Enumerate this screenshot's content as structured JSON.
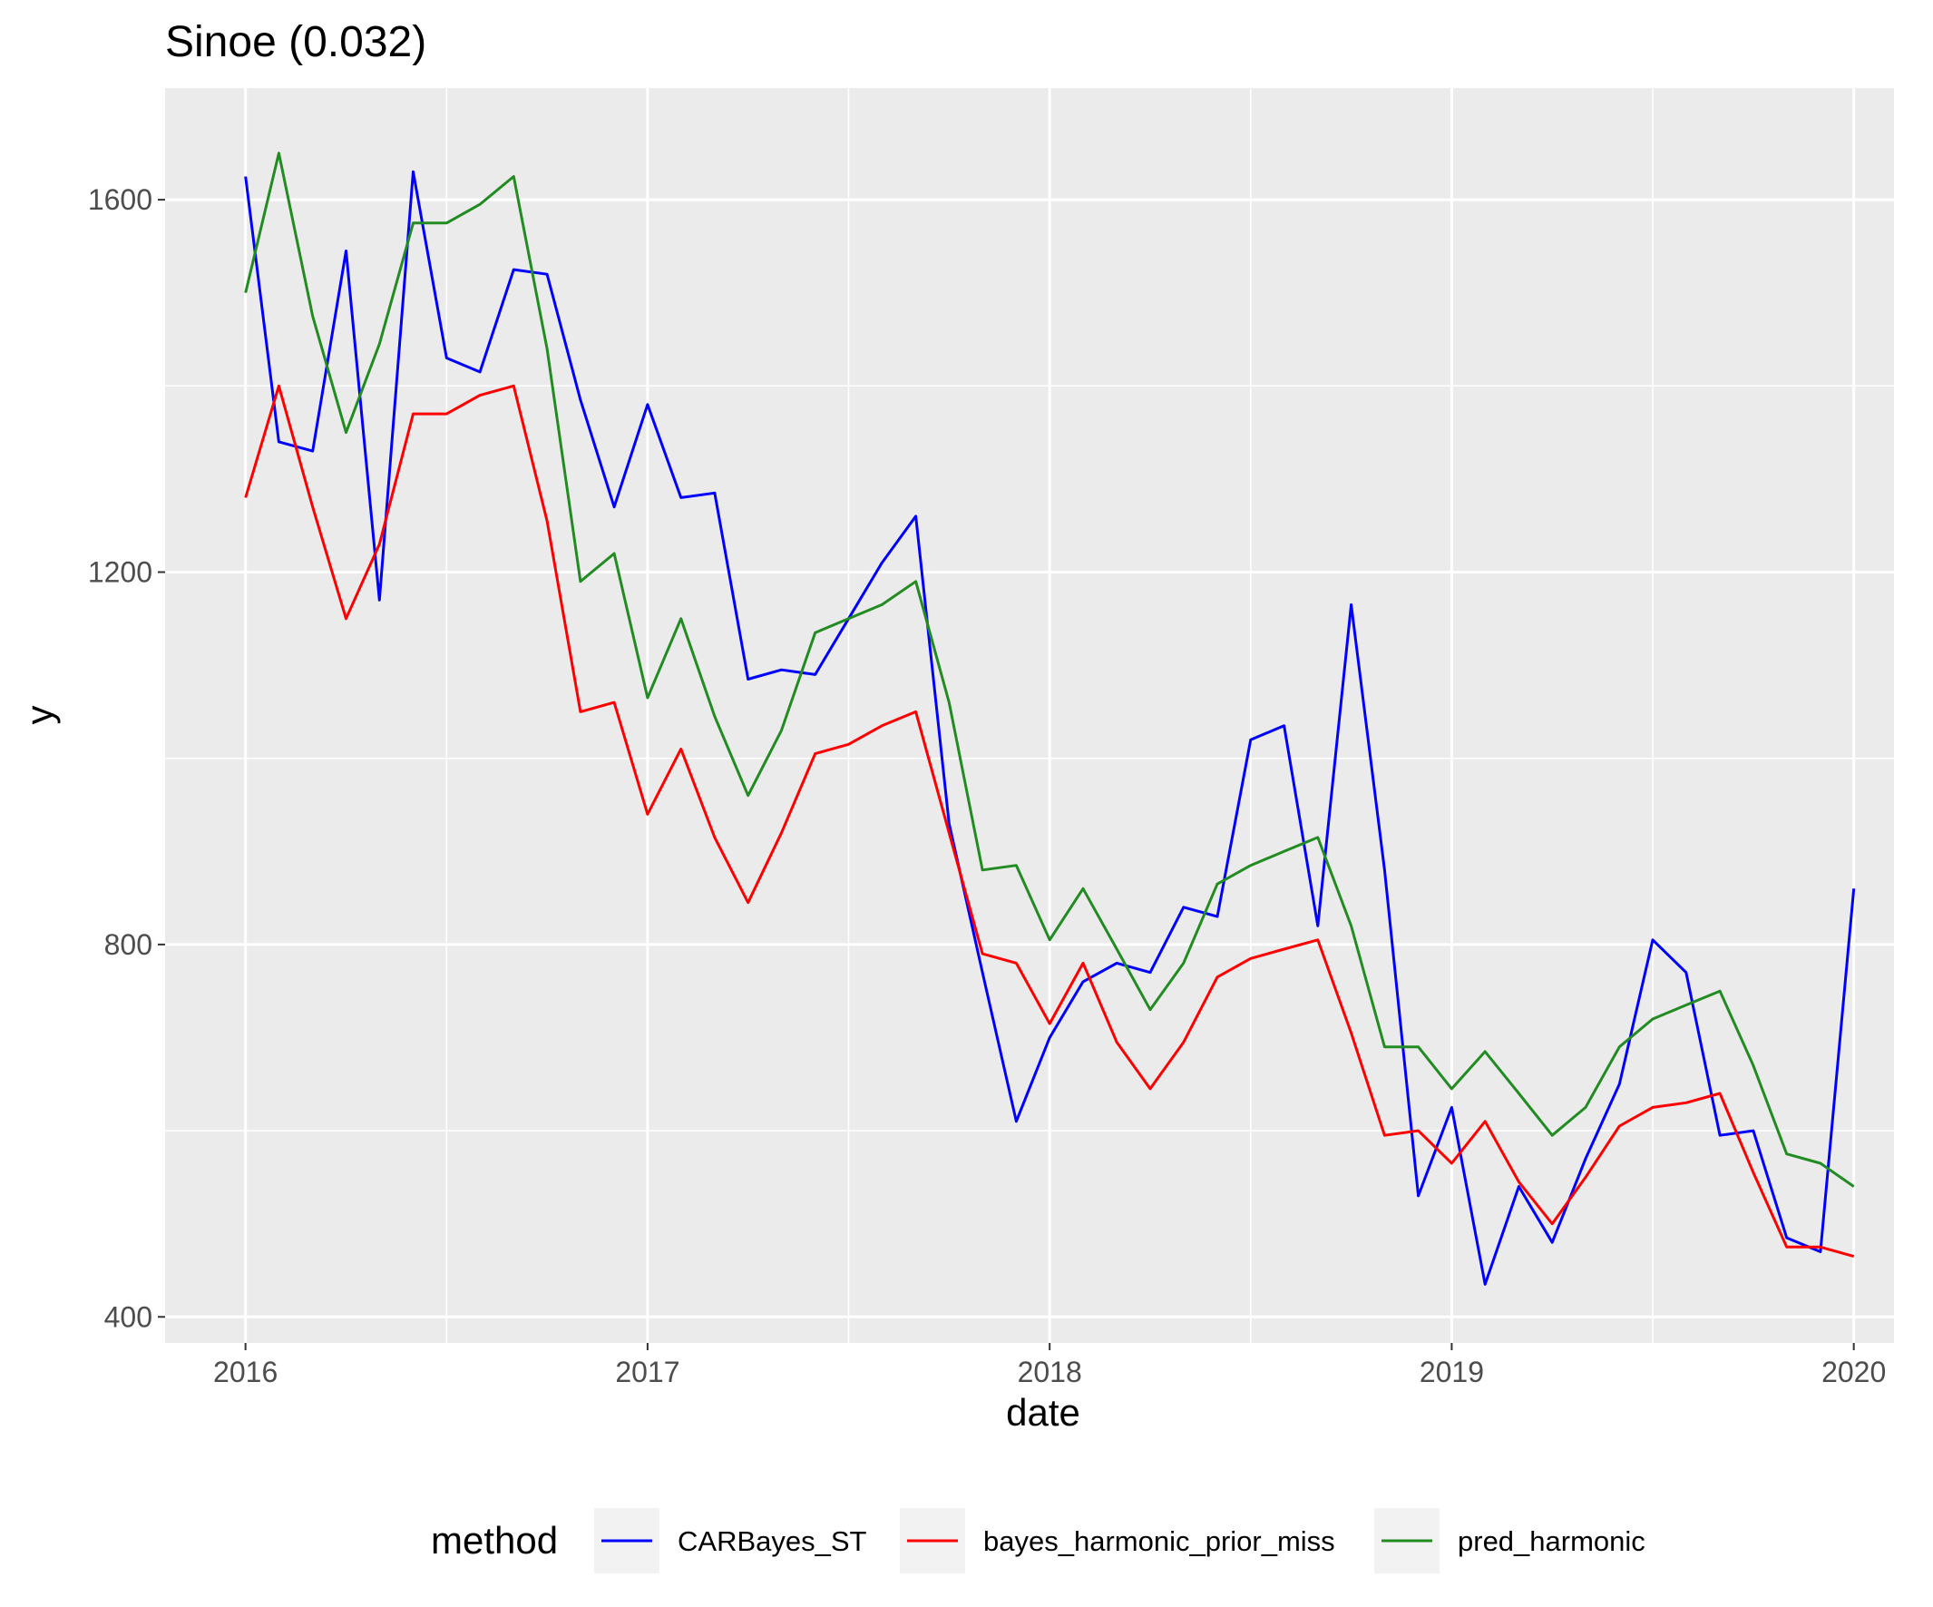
{
  "chart_data": {
    "type": "line",
    "title": "Sinoe (0.032)",
    "xlabel": "date",
    "ylabel": "y",
    "x_tick_labels": [
      "2016",
      "2017",
      "2018",
      "2019",
      "2020"
    ],
    "y_tick_labels": [
      "400",
      "800",
      "1200",
      "1600"
    ],
    "y_ticks": [
      400,
      800,
      1200,
      1600
    ],
    "xlim": [
      2015.8,
      2020.1
    ],
    "ylim": [
      372,
      1720
    ],
    "grid": true,
    "legend": {
      "title": "method",
      "position": "bottom"
    },
    "x": [
      2016.0,
      2016.083,
      2016.167,
      2016.25,
      2016.333,
      2016.417,
      2016.5,
      2016.583,
      2016.667,
      2016.75,
      2016.833,
      2016.917,
      2017.0,
      2017.083,
      2017.167,
      2017.25,
      2017.333,
      2017.417,
      2017.5,
      2017.583,
      2017.667,
      2017.75,
      2017.833,
      2017.917,
      2018.0,
      2018.083,
      2018.167,
      2018.25,
      2018.333,
      2018.417,
      2018.5,
      2018.583,
      2018.667,
      2018.75,
      2018.833,
      2018.917,
      2019.0,
      2019.083,
      2019.167,
      2019.25,
      2019.333,
      2019.417,
      2019.5,
      2019.583,
      2019.667,
      2019.75,
      2019.833,
      2019.917,
      2020.0
    ],
    "series": [
      {
        "name": "CARBayes_ST",
        "color": "#0000ff",
        "values": [
          1625,
          1340,
          1330,
          1545,
          1170,
          1630,
          1430,
          1415,
          1525,
          1520,
          1385,
          1270,
          1380,
          1280,
          1285,
          1085,
          1095,
          1090,
          1150,
          1210,
          1260,
          930,
          770,
          610,
          700,
          760,
          780,
          770,
          840,
          830,
          1020,
          1035,
          820,
          1165,
          880,
          530,
          625,
          435,
          540,
          480,
          570,
          650,
          805,
          770,
          595,
          600,
          485,
          470,
          860
        ]
      },
      {
        "name": "bayes_harmonic_prior_miss",
        "color": "#ff0000",
        "values": [
          1280,
          1400,
          1270,
          1150,
          1230,
          1370,
          1370,
          1390,
          1400,
          1255,
          1050,
          1060,
          940,
          1010,
          915,
          845,
          920,
          1005,
          1015,
          1035,
          1050,
          920,
          790,
          780,
          715,
          780,
          695,
          645,
          695,
          765,
          785,
          795,
          805,
          705,
          595,
          600,
          565,
          610,
          545,
          500,
          550,
          605,
          625,
          630,
          640,
          555,
          475,
          475,
          465
        ]
      },
      {
        "name": "pred_harmonic",
        "color": "#228b22",
        "values": [
          1500,
          1650,
          1475,
          1350,
          1445,
          1575,
          1575,
          1595,
          1625,
          1440,
          1190,
          1220,
          1065,
          1150,
          1045,
          960,
          1030,
          1135,
          1150,
          1165,
          1190,
          1060,
          880,
          885,
          805,
          860,
          795,
          730,
          780,
          865,
          885,
          900,
          915,
          820,
          690,
          690,
          645,
          685,
          640,
          595,
          625,
          690,
          720,
          735,
          750,
          670,
          575,
          565,
          540
        ]
      }
    ]
  }
}
